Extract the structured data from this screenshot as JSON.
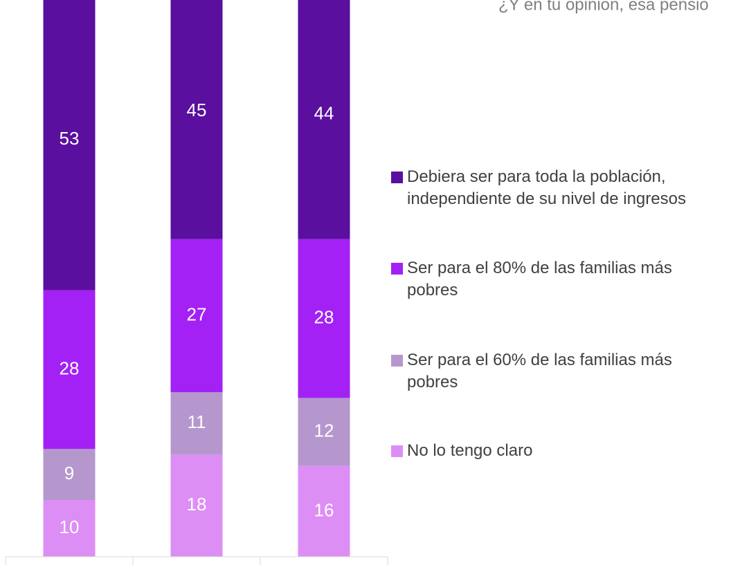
{
  "chart_data": {
    "type": "stacked_bar",
    "title": "¿Y en tu opinión, esa pensió",
    "categories": [
      null,
      null,
      null
    ],
    "series": [
      {
        "name": "No lo tengo claro",
        "color": "#dd8ef5",
        "values": [
          10,
          18,
          16
        ]
      },
      {
        "name": "Ser para el 60% de las familias más pobres",
        "color": "#b597cd",
        "values": [
          9,
          11,
          12
        ]
      },
      {
        "name": "Ser para el 80% de las familias más pobres",
        "color": "#a321f4",
        "values": [
          28,
          27,
          28
        ]
      },
      {
        "name": "Debiera ser para toda la población, independiente de su nivel de ingresos",
        "color": "#5a0f9f",
        "values": [
          53,
          45,
          44
        ]
      }
    ],
    "ylim": [
      0,
      100
    ],
    "legend": "right"
  }
}
